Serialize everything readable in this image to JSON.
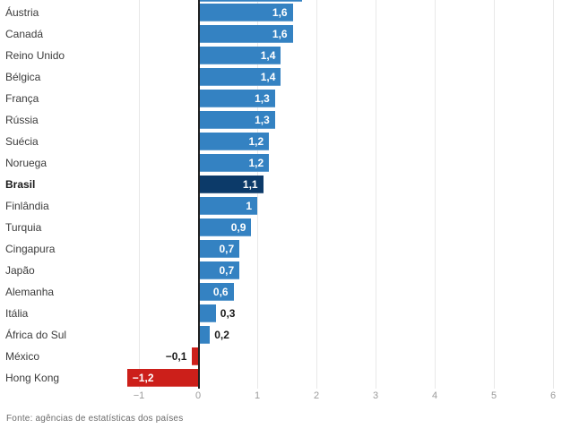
{
  "chart_data": {
    "type": "bar",
    "orientation": "horizontal",
    "rows": [
      {
        "label": "Áustria",
        "value": 1.6,
        "value_label": "1,6",
        "highlight": false
      },
      {
        "label": "Canadá",
        "value": 1.6,
        "value_label": "1,6",
        "highlight": false
      },
      {
        "label": "Reino Unido",
        "value": 1.4,
        "value_label": "1,4",
        "highlight": false
      },
      {
        "label": "Bélgica",
        "value": 1.4,
        "value_label": "1,4",
        "highlight": false
      },
      {
        "label": "França",
        "value": 1.3,
        "value_label": "1,3",
        "highlight": false
      },
      {
        "label": "Rússia",
        "value": 1.3,
        "value_label": "1,3",
        "highlight": false
      },
      {
        "label": "Suécia",
        "value": 1.2,
        "value_label": "1,2",
        "highlight": false
      },
      {
        "label": "Noruega",
        "value": 1.2,
        "value_label": "1,2",
        "highlight": false
      },
      {
        "label": "Brasil",
        "value": 1.1,
        "value_label": "1,1",
        "highlight": true
      },
      {
        "label": "Finlândia",
        "value": 1.0,
        "value_label": "1",
        "highlight": false
      },
      {
        "label": "Turquia",
        "value": 0.9,
        "value_label": "0,9",
        "highlight": false
      },
      {
        "label": "Cingapura",
        "value": 0.7,
        "value_label": "0,7",
        "highlight": false
      },
      {
        "label": "Japão",
        "value": 0.7,
        "value_label": "0,7",
        "highlight": false
      },
      {
        "label": "Alemanha",
        "value": 0.6,
        "value_label": "0,6",
        "highlight": false
      },
      {
        "label": "Itália",
        "value": 0.3,
        "value_label": "0,3",
        "highlight": false
      },
      {
        "label": "África do Sul",
        "value": 0.2,
        "value_label": "0,2",
        "highlight": false
      },
      {
        "label": "México",
        "value": -0.1,
        "value_label": "−0,1",
        "highlight": false
      },
      {
        "label": "Hong Kong",
        "value": -1.2,
        "value_label": "−1,2",
        "highlight": false
      }
    ],
    "x_ticks": [
      "−1",
      "0",
      "1",
      "2",
      "3",
      "4",
      "5",
      "6"
    ],
    "x_tick_values": [
      -1,
      0,
      1,
      2,
      3,
      4,
      5,
      6
    ],
    "xlim": [
      -1.53,
      6.44
    ],
    "cutoff_top_bar_value": 1.75,
    "grid": true,
    "colors": {
      "positive": "#3482c2",
      "highlight": "#0c3a69",
      "negative": "#cc1f1a",
      "gridline": "#e8e8e8",
      "zero_axis": "#1f1f1f",
      "tick_text": "#9b9b9b",
      "label_text": "#3c3c3c",
      "value_inside_text": "#ffffff",
      "value_outside_text": "#1a1a1a",
      "source_text": "#6b6b6b"
    },
    "source": "Fonte: agências de estatísticas dos países"
  }
}
